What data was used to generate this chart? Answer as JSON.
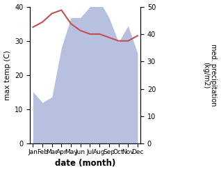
{
  "months": [
    "Jan",
    "Feb",
    "Mar",
    "Apr",
    "May",
    "Jun",
    "Jul",
    "Aug",
    "Sep",
    "Oct",
    "Nov",
    "Dec"
  ],
  "temperature": [
    34.0,
    35.5,
    38.0,
    39.0,
    35.0,
    33.0,
    32.0,
    32.0,
    31.0,
    30.0,
    30.0,
    31.5
  ],
  "precipitation": [
    19,
    15,
    17,
    35,
    46,
    46,
    50,
    52,
    46,
    37,
    43,
    33
  ],
  "temp_color": "#c0504d",
  "precip_fill_color": "#b8c0e0",
  "title": "",
  "xlabel": "date (month)",
  "ylabel_left": "max temp (C)",
  "ylabel_right": "med. precipitation\n(kg/m2)",
  "ylim_left": [
    0,
    40
  ],
  "ylim_right": [
    0,
    50
  ],
  "bg_color": "#ffffff",
  "fig_width": 3.18,
  "fig_height": 2.47,
  "dpi": 100
}
